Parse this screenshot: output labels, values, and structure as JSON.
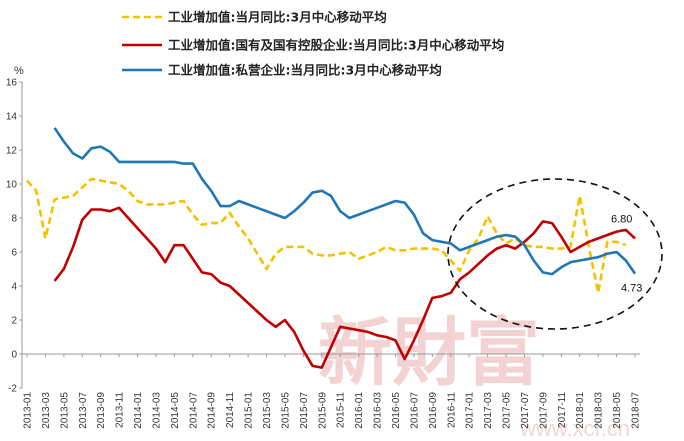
{
  "chart_data": {
    "type": "line",
    "ylabel": "%",
    "ylim": [
      -2,
      16
    ],
    "yticks": [
      -2,
      0,
      2,
      4,
      6,
      8,
      10,
      12,
      14,
      16
    ],
    "x": [
      "2013-01",
      "2013-02",
      "2013-03",
      "2013-04",
      "2013-05",
      "2013-06",
      "2013-07",
      "2013-08",
      "2013-09",
      "2013-10",
      "2013-11",
      "2013-12",
      "2014-01",
      "2014-02",
      "2014-03",
      "2014-04",
      "2014-05",
      "2014-06",
      "2014-07",
      "2014-08",
      "2014-09",
      "2014-10",
      "2014-11",
      "2014-12",
      "2015-01",
      "2015-02",
      "2015-03",
      "2015-04",
      "2015-05",
      "2015-06",
      "2015-07",
      "2015-08",
      "2015-09",
      "2015-10",
      "2015-11",
      "2015-12",
      "2016-01",
      "2016-02",
      "2016-03",
      "2016-04",
      "2016-05",
      "2016-06",
      "2016-07",
      "2016-08",
      "2016-09",
      "2016-10",
      "2016-11",
      "2016-12",
      "2017-01",
      "2017-02",
      "2017-03",
      "2017-04",
      "2017-05",
      "2017-06",
      "2017-07",
      "2017-08",
      "2017-09",
      "2017-10",
      "2017-11",
      "2017-12",
      "2018-01",
      "2018-02",
      "2018-03",
      "2018-04",
      "2018-05",
      "2018-06",
      "2018-07"
    ],
    "xtick_labels": [
      "2013-01",
      "2013-03",
      "2013-05",
      "2013-07",
      "2013-09",
      "2013-11",
      "2014-01",
      "2014-03",
      "2014-05",
      "2014-07",
      "2014-09",
      "2014-11",
      "2015-01",
      "2015-03",
      "2015-05",
      "2015-07",
      "2015-09",
      "2015-11",
      "2016-01",
      "2016-03",
      "2016-05",
      "2016-07",
      "2016-09",
      "2016-11",
      "2017-01",
      "2017-03",
      "2017-05",
      "2017-07",
      "2017-09",
      "2017-11",
      "2018-01",
      "2018-03",
      "2018-05",
      "2018-07"
    ],
    "series": [
      {
        "name": "工业增加值:当月同比:3月中心移动平均",
        "color": "#f2c200",
        "style": "dashed",
        "values": [
          10.2,
          9.6,
          6.8,
          9.1,
          9.2,
          9.3,
          9.8,
          10.3,
          10.2,
          10.1,
          10.0,
          9.6,
          9.0,
          8.8,
          8.8,
          8.8,
          8.9,
          9.0,
          8.2,
          7.6,
          7.7,
          7.7,
          8.3,
          7.5,
          6.8,
          5.9,
          5.0,
          5.9,
          6.3,
          6.3,
          6.3,
          5.9,
          5.8,
          5.8,
          5.9,
          6.0,
          5.6,
          5.8,
          6.0,
          6.3,
          6.1,
          6.1,
          6.2,
          6.2,
          6.2,
          6.1,
          5.5,
          4.9,
          6.1,
          6.8,
          8.1,
          7.1,
          6.5,
          6.8,
          6.4,
          6.3,
          6.3,
          6.2,
          6.2,
          6.3,
          9.3,
          6.3,
          3.6,
          6.6,
          6.6,
          6.4,
          null
        ],
        "end_label": ""
      },
      {
        "name": "工业增加值:国有及国有控股企业:当月同比:3月中心移动平均",
        "color": "#c00000",
        "style": "solid",
        "values": [
          null,
          null,
          null,
          4.3,
          5.0,
          6.3,
          7.9,
          8.5,
          8.5,
          8.4,
          8.6,
          8.0,
          7.4,
          6.8,
          6.2,
          5.4,
          6.4,
          6.4,
          5.6,
          4.8,
          4.7,
          4.2,
          4.0,
          3.5,
          3.0,
          2.5,
          2.0,
          1.6,
          2.0,
          1.3,
          0.2,
          -0.7,
          -0.8,
          0.4,
          1.6,
          1.5,
          1.4,
          1.3,
          1.1,
          1.0,
          0.8,
          -0.3,
          0.8,
          2.0,
          3.3,
          3.4,
          3.6,
          4.4,
          4.8,
          5.3,
          5.8,
          6.2,
          6.4,
          6.2,
          6.6,
          7.1,
          7.8,
          7.7,
          6.9,
          6.0,
          6.3,
          6.6,
          6.8,
          7.0,
          7.2,
          7.3,
          6.8
        ],
        "end_label": "6.80"
      },
      {
        "name": "工业增加值:私营企业:当月同比:3月中心移动平均",
        "color": "#1f77b4",
        "style": "solid",
        "values": [
          null,
          null,
          null,
          13.3,
          12.5,
          11.8,
          11.5,
          12.1,
          12.2,
          11.9,
          11.3,
          11.3,
          11.3,
          11.3,
          11.3,
          11.3,
          11.3,
          11.2,
          11.2,
          10.3,
          9.6,
          8.7,
          8.7,
          9.0,
          8.8,
          8.6,
          8.4,
          8.2,
          8.0,
          8.4,
          8.9,
          9.5,
          9.6,
          9.3,
          8.4,
          8.0,
          8.2,
          8.4,
          8.6,
          8.8,
          9.0,
          8.9,
          8.2,
          7.1,
          6.7,
          6.6,
          6.5,
          6.1,
          6.3,
          6.5,
          6.7,
          6.9,
          7.0,
          6.9,
          6.4,
          5.5,
          4.8,
          4.7,
          5.1,
          5.4,
          5.5,
          5.6,
          5.7,
          5.9,
          6.0,
          5.5,
          4.73
        ],
        "end_label": "4.73"
      }
    ],
    "annotation": "dashed ellipse highlighting 2016-11 to 2018-07",
    "grid": false,
    "legend_position": "top"
  },
  "watermark": {
    "text": "新財富",
    "url": "www.xcf.cn"
  }
}
